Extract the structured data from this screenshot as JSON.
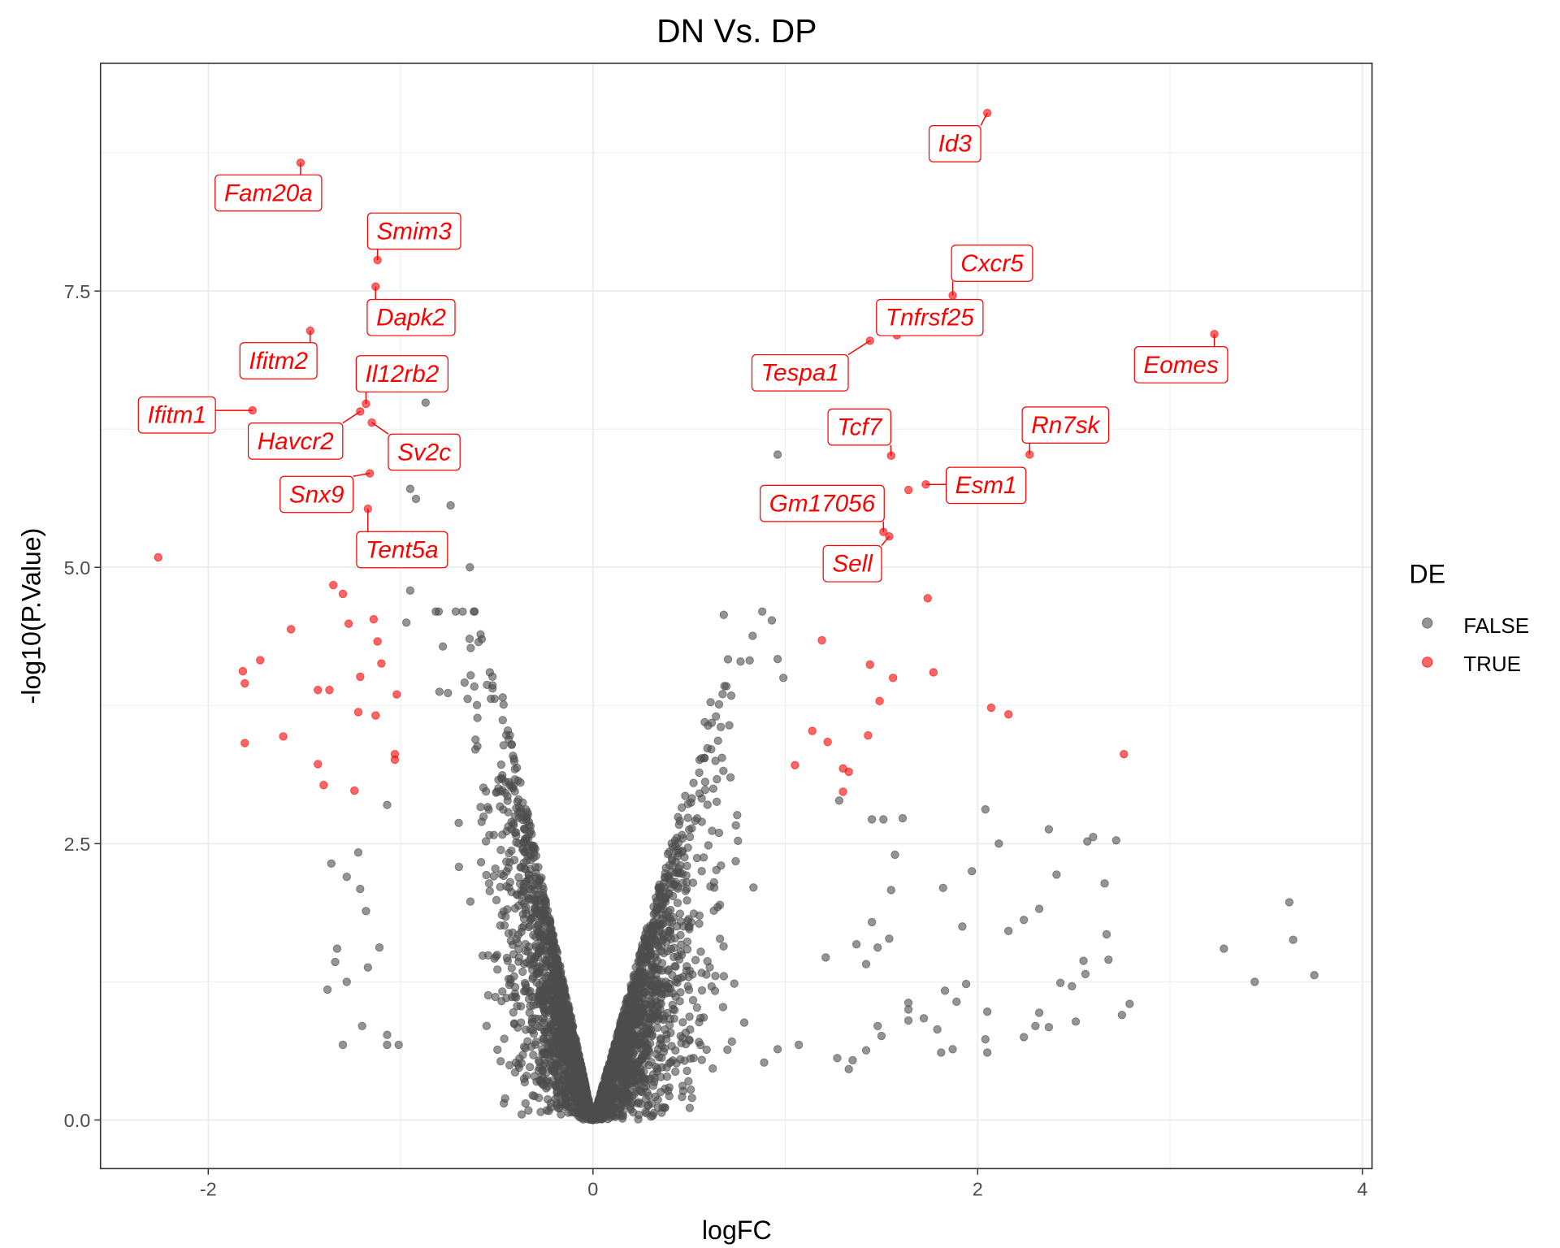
{
  "chart_data": {
    "type": "scatter",
    "title": "DN Vs. DP",
    "xlabel": "logFC",
    "ylabel": "-log10(P.Value)",
    "xlim": [
      -2.56,
      4.05
    ],
    "ylim": [
      -0.44,
      9.56
    ],
    "x_ticks": [
      -2,
      0,
      2,
      4
    ],
    "x_tick_labels": [
      "-2",
      "0",
      "2",
      "4"
    ],
    "y_ticks": [
      0,
      2.5,
      5,
      7.5
    ],
    "y_tick_labels": [
      "0.0",
      "2.5",
      "5.0",
      "7.5"
    ],
    "grid": true,
    "legend": {
      "title": "DE",
      "placement": "right",
      "entries": [
        {
          "label": "FALSE",
          "color": "#4d4d4d"
        },
        {
          "label": "TRUE",
          "color": "#ff0000"
        }
      ]
    },
    "series": [
      {
        "name": "TRUE",
        "color": "#ff0000",
        "points": [
          [
            -2.26,
            5.09
          ],
          [
            -1.52,
            8.66
          ],
          [
            -1.12,
            7.78
          ],
          [
            -1.13,
            7.54
          ],
          [
            -1.47,
            7.14
          ],
          [
            -1.77,
            6.42
          ],
          [
            -1.18,
            6.48
          ],
          [
            -1.21,
            6.41
          ],
          [
            -1.15,
            6.31
          ],
          [
            -1.16,
            5.85
          ],
          [
            -1.17,
            5.53
          ],
          [
            2.05,
            9.11
          ],
          [
            1.87,
            7.46
          ],
          [
            1.58,
            7.1
          ],
          [
            1.44,
            7.05
          ],
          [
            3.23,
            7.11
          ],
          [
            1.55,
            6.01
          ],
          [
            2.27,
            6.02
          ],
          [
            1.64,
            5.7
          ],
          [
            1.73,
            5.75
          ],
          [
            1.51,
            5.32
          ],
          [
            1.54,
            5.28
          ],
          [
            1.74,
            4.72
          ],
          [
            -1.35,
            4.84
          ],
          [
            -1.3,
            4.76
          ],
          [
            -1.57,
            4.44
          ],
          [
            -1.14,
            4.53
          ],
          [
            -1.27,
            4.49
          ],
          [
            -1.12,
            4.33
          ],
          [
            -1.73,
            4.16
          ],
          [
            -1.82,
            4.06
          ],
          [
            -1.81,
            3.95
          ],
          [
            -1.1,
            4.13
          ],
          [
            -1.21,
            4.01
          ],
          [
            -1.43,
            3.89
          ],
          [
            -1.37,
            3.89
          ],
          [
            -1.02,
            3.85
          ],
          [
            -1.22,
            3.69
          ],
          [
            -1.13,
            3.66
          ],
          [
            -1.81,
            3.41
          ],
          [
            -1.61,
            3.47
          ],
          [
            -1.03,
            3.31
          ],
          [
            -1.03,
            3.26
          ],
          [
            -1.43,
            3.22
          ],
          [
            -1.4,
            3.03
          ],
          [
            -1.24,
            2.98
          ],
          [
            1.19,
            4.34
          ],
          [
            1.44,
            4.12
          ],
          [
            1.56,
            4.0
          ],
          [
            1.77,
            4.05
          ],
          [
            1.49,
            3.79
          ],
          [
            2.07,
            3.73
          ],
          [
            2.16,
            3.67
          ],
          [
            1.43,
            3.48
          ],
          [
            1.14,
            3.52
          ],
          [
            1.22,
            3.42
          ],
          [
            2.76,
            3.31
          ],
          [
            1.05,
            3.21
          ],
          [
            1.3,
            3.18
          ],
          [
            1.33,
            3.15
          ],
          [
            1.3,
            2.97
          ]
        ]
      },
      {
        "name": "FALSE",
        "color": "#4d4d4d",
        "points": [
          [
            3.62,
            1.97
          ],
          [
            3.64,
            1.63
          ],
          [
            3.75,
            1.31
          ],
          [
            3.44,
            1.25
          ],
          [
            3.28,
            1.55
          ],
          [
            2.79,
            1.05
          ],
          [
            2.75,
            0.95
          ],
          [
            2.72,
            2.53
          ],
          [
            2.6,
            2.56
          ],
          [
            2.57,
            2.52
          ],
          [
            2.66,
            2.14
          ],
          [
            2.67,
            1.68
          ],
          [
            2.68,
            1.45
          ],
          [
            2.55,
            1.44
          ],
          [
            2.56,
            1.32
          ],
          [
            2.49,
            1.21
          ],
          [
            2.43,
            1.24
          ],
          [
            2.41,
            2.22
          ],
          [
            2.37,
            2.63
          ],
          [
            2.32,
            1.91
          ],
          [
            2.24,
            1.81
          ],
          [
            2.16,
            1.71
          ],
          [
            2.32,
            0.97
          ],
          [
            2.3,
            0.85
          ],
          [
            2.24,
            0.75
          ],
          [
            2.37,
            0.84
          ],
          [
            2.51,
            0.89
          ],
          [
            2.11,
            2.5
          ],
          [
            2.04,
            2.81
          ],
          [
            1.97,
            2.25
          ],
          [
            1.92,
            1.75
          ],
          [
            1.82,
            2.1
          ],
          [
            1.94,
            1.23
          ],
          [
            1.89,
            1.07
          ],
          [
            1.83,
            1.17
          ],
          [
            1.79,
            0.82
          ],
          [
            1.87,
            0.64
          ],
          [
            1.81,
            0.61
          ],
          [
            2.05,
            0.61
          ],
          [
            2.04,
            0.73
          ],
          [
            2.05,
            0.98
          ],
          [
            1.72,
            0.92
          ],
          [
            1.64,
            1.0
          ],
          [
            1.64,
            1.06
          ],
          [
            1.64,
            0.9
          ],
          [
            1.57,
            2.4
          ],
          [
            1.51,
            2.72
          ],
          [
            1.45,
            2.72
          ],
          [
            1.61,
            2.73
          ],
          [
            1.55,
            2.08
          ],
          [
            1.45,
            1.79
          ],
          [
            1.48,
            1.56
          ],
          [
            1.54,
            1.64
          ],
          [
            1.48,
            0.85
          ],
          [
            1.5,
            0.76
          ],
          [
            1.42,
            0.63
          ],
          [
            1.35,
            0.54
          ],
          [
            1.27,
            0.56
          ],
          [
            1.33,
            0.46
          ],
          [
            1.42,
            1.41
          ],
          [
            1.37,
            1.59
          ],
          [
            1.28,
            2.89
          ],
          [
            0.96,
            4.17
          ],
          [
            0.99,
            4.0
          ],
          [
            0.88,
            4.6
          ],
          [
            0.93,
            4.52
          ],
          [
            0.68,
            4.57
          ],
          [
            0.83,
            4.38
          ],
          [
            0.96,
            0.64
          ],
          [
            0.89,
            0.52
          ],
          [
            1.07,
            0.68
          ],
          [
            1.21,
            1.47
          ],
          [
            0.96,
            6.02
          ],
          [
            -1.36,
            2.32
          ],
          [
            -1.22,
            2.42
          ],
          [
            -1.28,
            2.2
          ],
          [
            -1.21,
            2.09
          ],
          [
            -1.33,
            1.55
          ],
          [
            -1.34,
            1.43
          ],
          [
            -1.38,
            1.18
          ],
          [
            -1.28,
            1.25
          ],
          [
            -1.3,
            0.68
          ],
          [
            -1.2,
            0.85
          ],
          [
            -1.07,
            0.68
          ],
          [
            -1.07,
            0.77
          ],
          [
            -1.01,
            0.68
          ],
          [
            -1.17,
            1.38
          ],
          [
            -1.11,
            1.56
          ],
          [
            -1.18,
            1.89
          ],
          [
            -1.07,
            2.85
          ],
          [
            -0.97,
            4.5
          ],
          [
            -0.89,
            5.23
          ],
          [
            -0.87,
            6.49
          ],
          [
            -0.95,
            5.71
          ],
          [
            -0.95,
            4.79
          ],
          [
            -0.92,
            5.62
          ],
          [
            -0.74,
            5.56
          ],
          [
            -0.64,
            5.0
          ]
        ]
      }
    ],
    "labels": [
      {
        "gene": "Fam20a",
        "x": -1.52,
        "y": 8.66
      },
      {
        "gene": "Smim3",
        "x": -1.12,
        "y": 7.78
      },
      {
        "gene": "Dapk2",
        "x": -1.13,
        "y": 7.54
      },
      {
        "gene": "Ifitm2",
        "x": -1.47,
        "y": 7.14
      },
      {
        "gene": "Il12rb2",
        "x": -1.18,
        "y": 6.48
      },
      {
        "gene": "Ifitm1",
        "x": -1.77,
        "y": 6.42
      },
      {
        "gene": "Havcr2",
        "x": -1.21,
        "y": 6.41
      },
      {
        "gene": "Sv2c",
        "x": -1.15,
        "y": 6.31
      },
      {
        "gene": "Snx9",
        "x": -1.16,
        "y": 5.85
      },
      {
        "gene": "Tent5a",
        "x": -1.17,
        "y": 5.53
      },
      {
        "gene": "Id3",
        "x": 2.05,
        "y": 9.11
      },
      {
        "gene": "Cxcr5",
        "x": 1.87,
        "y": 7.46
      },
      {
        "gene": "Tnfrsf25",
        "x": 1.58,
        "y": 7.1
      },
      {
        "gene": "Tespa1",
        "x": 1.44,
        "y": 7.05
      },
      {
        "gene": "Eomes",
        "x": 3.23,
        "y": 7.11
      },
      {
        "gene": "Tcf7",
        "x": 1.55,
        "y": 6.01
      },
      {
        "gene": "Rn7sk",
        "x": 2.27,
        "y": 6.02
      },
      {
        "gene": "Esm1",
        "x": 1.73,
        "y": 5.75
      },
      {
        "gene": "Gm17056",
        "x": 1.51,
        "y": 5.32
      },
      {
        "gene": "Sell",
        "x": 1.54,
        "y": 5.28
      }
    ]
  }
}
